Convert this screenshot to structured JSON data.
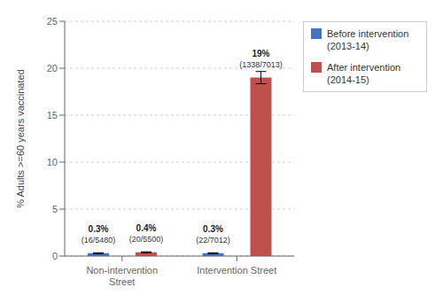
{
  "chart_data": {
    "type": "bar",
    "categories": [
      "Non-intervention\nStreet",
      "Intervention Street"
    ],
    "series": [
      {
        "name": "Before intervention\n(2013-14)",
        "color": "#4472C4",
        "values": [
          0.3,
          0.3
        ],
        "errors": [
          0.05,
          0.05
        ],
        "value_labels": [
          "0.3%",
          "0.3%"
        ],
        "annotations": [
          "(16/5480)",
          "(22/7012)"
        ]
      },
      {
        "name": "After intervention\n(2014-15)",
        "color": "#C0504D",
        "values": [
          0.4,
          19.0
        ],
        "errors": [
          0.05,
          0.65
        ],
        "value_labels": [
          "0.4%",
          "19%"
        ],
        "annotations": [
          "(20/5500)",
          "(1338/7013)"
        ]
      }
    ],
    "ylabel": "% Adults >=60 years vaccinated",
    "ylim": [
      0,
      25
    ],
    "yticks": [
      0,
      5,
      10,
      15,
      20,
      25
    ],
    "grid": true,
    "legend": "right",
    "data_labels": true
  }
}
